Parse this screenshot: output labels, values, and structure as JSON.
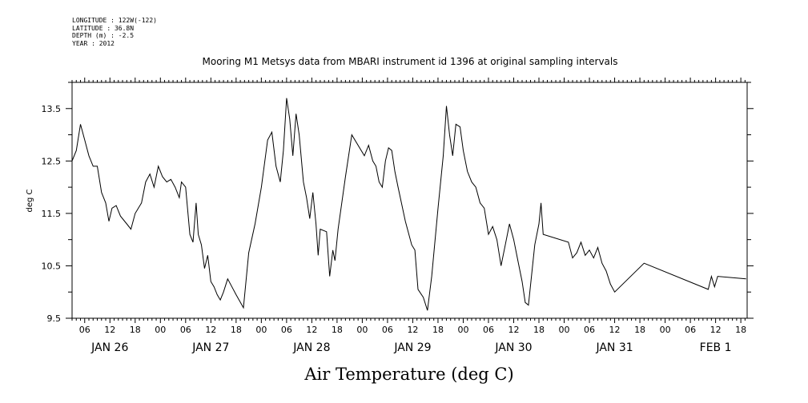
{
  "header": {
    "longitude": "LONGITUDE : 122W(-122)",
    "latitude": "LATITUDE : 36.8N",
    "depth": "DEPTH (m) : -2.5",
    "year": "YEAR : 2012"
  },
  "chart_data": {
    "type": "line",
    "title": "Mooring M1 Metsys data from MBARI instrument id 1396 at original sampling intervals",
    "ylabel": "deg C",
    "xlabel": "Air Temperature (deg C)",
    "ylim": [
      9.5,
      14.0
    ],
    "xlim": [
      "2012-01-26T03:00",
      "2012-02-01T19:30"
    ],
    "grid": false,
    "yticks": [
      {
        "value": 9.5,
        "label": "9.5"
      },
      {
        "value": 10.5,
        "label": "10.5"
      },
      {
        "value": 11.5,
        "label": "11.5"
      },
      {
        "value": 12.5,
        "label": "12.5"
      },
      {
        "value": 13.5,
        "label": "13.5"
      }
    ],
    "xtick_labels": [
      {
        "t": "2012-01-26T06:00",
        "label": "06"
      },
      {
        "t": "2012-01-26T12:00",
        "label": "12"
      },
      {
        "t": "2012-01-26T18:00",
        "label": "18"
      },
      {
        "t": "2012-01-27T00:00",
        "label": "00"
      },
      {
        "t": "2012-01-27T06:00",
        "label": "06"
      },
      {
        "t": "2012-01-27T12:00",
        "label": "12"
      },
      {
        "t": "2012-01-27T18:00",
        "label": "18"
      },
      {
        "t": "2012-01-28T00:00",
        "label": "00"
      },
      {
        "t": "2012-01-28T06:00",
        "label": "06"
      },
      {
        "t": "2012-01-28T12:00",
        "label": "12"
      },
      {
        "t": "2012-01-28T18:00",
        "label": "18"
      },
      {
        "t": "2012-01-29T00:00",
        "label": "00"
      },
      {
        "t": "2012-01-29T06:00",
        "label": "06"
      },
      {
        "t": "2012-01-29T12:00",
        "label": "12"
      },
      {
        "t": "2012-01-29T18:00",
        "label": "18"
      },
      {
        "t": "2012-01-30T00:00",
        "label": "00"
      },
      {
        "t": "2012-01-30T06:00",
        "label": "06"
      },
      {
        "t": "2012-01-30T12:00",
        "label": "12"
      },
      {
        "t": "2012-01-30T18:00",
        "label": "18"
      },
      {
        "t": "2012-01-31T00:00",
        "label": "00"
      },
      {
        "t": "2012-01-31T06:00",
        "label": "06"
      },
      {
        "t": "2012-01-31T12:00",
        "label": "12"
      },
      {
        "t": "2012-01-31T18:00",
        "label": "18"
      },
      {
        "t": "2012-02-01T00:00",
        "label": "00"
      },
      {
        "t": "2012-02-01T06:00",
        "label": "06"
      },
      {
        "t": "2012-02-01T12:00",
        "label": "12"
      },
      {
        "t": "2012-02-01T18:00",
        "label": "18"
      }
    ],
    "day_labels": [
      {
        "t": "2012-01-26T12:00",
        "label": "JAN 26"
      },
      {
        "t": "2012-01-27T12:00",
        "label": "JAN 27"
      },
      {
        "t": "2012-01-28T12:00",
        "label": "JAN 28"
      },
      {
        "t": "2012-01-29T12:00",
        "label": "JAN 29"
      },
      {
        "t": "2012-01-30T12:00",
        "label": "JAN 30"
      },
      {
        "t": "2012-01-31T12:00",
        "label": "JAN 31"
      },
      {
        "t": "2012-02-01T12:00",
        "label": "FEB 1"
      }
    ],
    "series": [
      {
        "color": "#000000",
        "points": [
          [
            "2012-01-26T03:00",
            12.5
          ],
          [
            "2012-01-26T04:00",
            12.7
          ],
          [
            "2012-01-26T05:00",
            13.2
          ],
          [
            "2012-01-26T06:00",
            12.9
          ],
          [
            "2012-01-26T07:00",
            12.6
          ],
          [
            "2012-01-26T08:00",
            12.4
          ],
          [
            "2012-01-26T09:00",
            12.4
          ],
          [
            "2012-01-26T10:00",
            11.9
          ],
          [
            "2012-01-26T11:00",
            11.7
          ],
          [
            "2012-01-26T11:45",
            11.35
          ],
          [
            "2012-01-26T12:30",
            11.6
          ],
          [
            "2012-01-26T13:30",
            11.65
          ],
          [
            "2012-01-26T14:30",
            11.45
          ],
          [
            "2012-01-26T16:00",
            11.3
          ],
          [
            "2012-01-26T17:00",
            11.2
          ],
          [
            "2012-01-26T18:00",
            11.5
          ],
          [
            "2012-01-26T19:30",
            11.7
          ],
          [
            "2012-01-26T20:30",
            12.1
          ],
          [
            "2012-01-26T21:30",
            12.25
          ],
          [
            "2012-01-26T22:30",
            12.0
          ],
          [
            "2012-01-26T23:30",
            12.4
          ],
          [
            "2012-01-27T00:30",
            12.2
          ],
          [
            "2012-01-27T01:30",
            12.1
          ],
          [
            "2012-01-27T02:30",
            12.15
          ],
          [
            "2012-01-27T03:30",
            12.0
          ],
          [
            "2012-01-27T04:30",
            11.8
          ],
          [
            "2012-01-27T05:00",
            12.1
          ],
          [
            "2012-01-27T06:00",
            12.0
          ],
          [
            "2012-01-27T07:00",
            11.1
          ],
          [
            "2012-01-27T07:45",
            10.95
          ],
          [
            "2012-01-27T08:30",
            11.7
          ],
          [
            "2012-01-27T09:00",
            11.1
          ],
          [
            "2012-01-27T09:45",
            10.9
          ],
          [
            "2012-01-27T10:30",
            10.45
          ],
          [
            "2012-01-27T11:15",
            10.7
          ],
          [
            "2012-01-27T12:00",
            10.2
          ],
          [
            "2012-01-27T12:45",
            10.1
          ],
          [
            "2012-01-27T13:30",
            9.95
          ],
          [
            "2012-01-27T14:15",
            9.85
          ],
          [
            "2012-01-27T15:00",
            10.0
          ],
          [
            "2012-01-27T16:00",
            10.25
          ],
          [
            "2012-01-27T17:00",
            10.1
          ],
          [
            "2012-01-27T18:00",
            9.95
          ],
          [
            "2012-01-27T19:45",
            9.7
          ],
          [
            "2012-01-27T21:00",
            10.75
          ],
          [
            "2012-01-27T22:30",
            11.3
          ],
          [
            "2012-01-28T00:00",
            12.0
          ],
          [
            "2012-01-28T01:30",
            12.9
          ],
          [
            "2012-01-28T02:30",
            13.05
          ],
          [
            "2012-01-28T03:30",
            12.4
          ],
          [
            "2012-01-28T04:30",
            12.1
          ],
          [
            "2012-01-28T05:15",
            12.7
          ],
          [
            "2012-01-28T06:00",
            13.7
          ],
          [
            "2012-01-28T06:45",
            13.3
          ],
          [
            "2012-01-28T07:30",
            12.6
          ],
          [
            "2012-01-28T08:15",
            13.4
          ],
          [
            "2012-01-28T09:00",
            13.0
          ],
          [
            "2012-01-28T10:00",
            12.1
          ],
          [
            "2012-01-28T10:45",
            11.8
          ],
          [
            "2012-01-28T11:30",
            11.4
          ],
          [
            "2012-01-28T12:15",
            11.9
          ],
          [
            "2012-01-28T13:00",
            11.3
          ],
          [
            "2012-01-28T13:30",
            10.7
          ],
          [
            "2012-01-28T14:00",
            11.2
          ],
          [
            "2012-01-28T15:30",
            11.15
          ],
          [
            "2012-01-28T16:15",
            10.3
          ],
          [
            "2012-01-28T17:00",
            10.8
          ],
          [
            "2012-01-28T17:30",
            10.6
          ],
          [
            "2012-01-28T18:15",
            11.2
          ],
          [
            "2012-01-28T20:00",
            12.2
          ],
          [
            "2012-01-28T21:30",
            13.0
          ],
          [
            "2012-01-29T00:30",
            12.6
          ],
          [
            "2012-01-29T01:30",
            12.8
          ],
          [
            "2012-01-29T02:30",
            12.5
          ],
          [
            "2012-01-29T03:15",
            12.4
          ],
          [
            "2012-01-29T04:00",
            12.1
          ],
          [
            "2012-01-29T04:45",
            12.0
          ],
          [
            "2012-01-29T05:30",
            12.5
          ],
          [
            "2012-01-29T06:15",
            12.75
          ],
          [
            "2012-01-29T07:00",
            12.7
          ],
          [
            "2012-01-29T07:45",
            12.3
          ],
          [
            "2012-01-29T08:30",
            12.0
          ],
          [
            "2012-01-29T10:15",
            11.35
          ],
          [
            "2012-01-29T11:45",
            10.9
          ],
          [
            "2012-01-29T12:30",
            10.8
          ],
          [
            "2012-01-29T13:15",
            10.05
          ],
          [
            "2012-01-29T14:30",
            9.9
          ],
          [
            "2012-01-29T15:30",
            9.65
          ],
          [
            "2012-01-29T16:30",
            10.3
          ],
          [
            "2012-01-29T18:00",
            11.6
          ],
          [
            "2012-01-29T19:15",
            12.6
          ],
          [
            "2012-01-29T20:00",
            13.55
          ],
          [
            "2012-01-29T20:45",
            13.0
          ],
          [
            "2012-01-29T21:30",
            12.6
          ],
          [
            "2012-01-29T22:15",
            13.2
          ],
          [
            "2012-01-29T23:15",
            13.15
          ],
          [
            "2012-01-30T00:00",
            12.7
          ],
          [
            "2012-01-30T01:00",
            12.3
          ],
          [
            "2012-01-30T02:00",
            12.1
          ],
          [
            "2012-01-30T03:00",
            12.0
          ],
          [
            "2012-01-30T04:00",
            11.7
          ],
          [
            "2012-01-30T05:00",
            11.6
          ],
          [
            "2012-01-30T06:00",
            11.1
          ],
          [
            "2012-01-30T07:00",
            11.25
          ],
          [
            "2012-01-30T08:00",
            11.0
          ],
          [
            "2012-01-30T09:00",
            10.5
          ],
          [
            "2012-01-30T10:00",
            10.9
          ],
          [
            "2012-01-30T11:00",
            11.3
          ],
          [
            "2012-01-30T12:00",
            11.0
          ],
          [
            "2012-01-30T13:00",
            10.6
          ],
          [
            "2012-01-30T14:00",
            10.2
          ],
          [
            "2012-01-30T14:45",
            9.8
          ],
          [
            "2012-01-30T15:30",
            9.75
          ],
          [
            "2012-01-30T17:00",
            10.9
          ],
          [
            "2012-01-30T18:00",
            11.3
          ],
          [
            "2012-01-30T18:30",
            11.7
          ],
          [
            "2012-01-30T19:00",
            11.1
          ],
          [
            "2012-01-31T01:00",
            10.95
          ],
          [
            "2012-01-31T02:00",
            10.65
          ],
          [
            "2012-01-31T03:00",
            10.75
          ],
          [
            "2012-01-31T04:00",
            10.95
          ],
          [
            "2012-01-31T05:00",
            10.7
          ],
          [
            "2012-01-31T06:00",
            10.8
          ],
          [
            "2012-01-31T07:00",
            10.65
          ],
          [
            "2012-01-31T08:00",
            10.85
          ],
          [
            "2012-01-31T09:00",
            10.55
          ],
          [
            "2012-01-31T10:00",
            10.4
          ],
          [
            "2012-01-31T11:00",
            10.15
          ],
          [
            "2012-01-31T12:00",
            10.0
          ],
          [
            "2012-01-31T19:00",
            10.55
          ],
          [
            "2012-02-01T10:15",
            10.05
          ],
          [
            "2012-02-01T11:00",
            10.3
          ],
          [
            "2012-02-01T11:45",
            10.1
          ],
          [
            "2012-02-01T12:30",
            10.3
          ],
          [
            "2012-02-01T19:15",
            10.25
          ]
        ]
      }
    ]
  }
}
